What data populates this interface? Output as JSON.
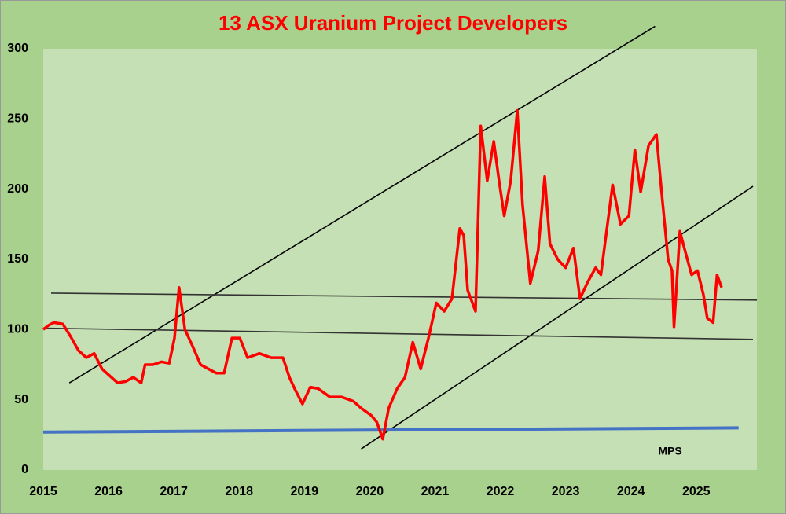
{
  "chart_data": {
    "type": "line",
    "title": "13 ASX Uranium Project Developers",
    "x": [
      2015.0,
      2015.08,
      2015.16,
      2015.3,
      2015.42,
      2015.54,
      2015.66,
      2015.78,
      2015.9,
      2016.02,
      2016.14,
      2016.26,
      2016.38,
      2016.5,
      2016.56,
      2016.68,
      2016.81,
      2016.93,
      2017.01,
      2017.08,
      2017.17,
      2017.29,
      2017.41,
      2017.53,
      2017.65,
      2017.77,
      2017.89,
      2018.01,
      2018.13,
      2018.31,
      2018.49,
      2018.67,
      2018.77,
      2018.85,
      2018.97,
      2019.09,
      2019.21,
      2019.39,
      2019.57,
      2019.75,
      2019.87,
      2020.02,
      2020.11,
      2020.2,
      2020.29,
      2020.42,
      2020.54,
      2020.66,
      2020.78,
      2020.9,
      2021.02,
      2021.14,
      2021.26,
      2021.38,
      2021.44,
      2021.5,
      2021.62,
      2021.7,
      2021.8,
      2021.9,
      2021.98,
      2022.06,
      2022.16,
      2022.26,
      2022.34,
      2022.46,
      2022.58,
      2022.68,
      2022.76,
      2022.88,
      2023.0,
      2023.12,
      2023.22,
      2023.34,
      2023.46,
      2023.54,
      2023.72,
      2023.84,
      2023.97,
      2024.06,
      2024.15,
      2024.27,
      2024.39,
      2024.47,
      2024.57,
      2024.63,
      2024.66,
      2024.75,
      2024.83,
      2024.93,
      2025.02,
      2025.11,
      2025.17,
      2025.26,
      2025.32,
      2025.39
    ],
    "series": [
      {
        "color": "#ff0000",
        "values": [
          100,
          103,
          105,
          104,
          95,
          85,
          80,
          83,
          72,
          67,
          62,
          63,
          66,
          62,
          75,
          75,
          77,
          76,
          94,
          130,
          100,
          88,
          75,
          72,
          69,
          69,
          94,
          94,
          80,
          83,
          80,
          80,
          66,
          58,
          47,
          59,
          58,
          52,
          52,
          49,
          44,
          39,
          34,
          22,
          44,
          58,
          66,
          91,
          72,
          94,
          119,
          113,
          122,
          172,
          167,
          128,
          113,
          245,
          206,
          234,
          206,
          181,
          206,
          256,
          189,
          133,
          156,
          209,
          161,
          150,
          144,
          158,
          122,
          134,
          144,
          139,
          203,
          175,
          181,
          228,
          198,
          231,
          239,
          198,
          150,
          142,
          102,
          170,
          156,
          139,
          142,
          125,
          108,
          105,
          139,
          130
        ]
      }
    ],
    "lines": [
      {
        "color": "#000000",
        "x": [
          2015.4,
          2024.37
        ],
        "values": [
          62,
          316
        ]
      },
      {
        "color": "#000000",
        "x": [
          2019.87,
          2025.87
        ],
        "values": [
          15,
          202
        ]
      },
      {
        "color": "#333333",
        "x": [
          2015.12,
          2025.93
        ],
        "values": [
          126,
          121
        ]
      },
      {
        "color": "#333333",
        "x": [
          2015.0,
          2025.87
        ],
        "values": [
          101,
          93
        ]
      },
      {
        "color": "#4472c4",
        "x": [
          2015.0,
          2025.65
        ],
        "values": [
          27,
          30
        ]
      }
    ],
    "annotations": [
      {
        "text": "MPS",
        "x": 2024.6,
        "y": 13
      }
    ],
    "xlim": [
      2015,
      2025.93
    ],
    "xticks": [
      2015,
      2016,
      2017,
      2018,
      2019,
      2020,
      2021,
      2022,
      2023,
      2024,
      2025
    ],
    "ylim": [
      0,
      300
    ],
    "yticks": [
      0,
      50,
      100,
      150,
      200,
      250,
      300
    ]
  }
}
